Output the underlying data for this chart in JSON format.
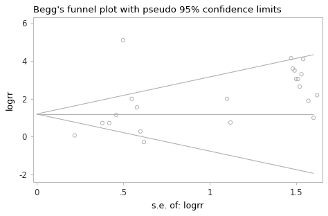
{
  "title": "Begg's funnel plot with pseudo 95% confidence limits",
  "xlabel": "s.e. of: logrr",
  "ylabel": "logrr",
  "xlim": [
    -0.02,
    1.65
  ],
  "ylim": [
    -2.4,
    6.3
  ],
  "xticks": [
    0,
    0.5,
    1.0,
    1.5
  ],
  "xtick_labels": [
    "0",
    ".5",
    "1",
    "1.5"
  ],
  "yticks": [
    -2,
    0,
    2,
    4,
    6
  ],
  "ytick_labels": [
    "-2",
    "0",
    "2",
    "4",
    "6"
  ],
  "estimate": 1.2,
  "scatter_x": [
    0.22,
    0.38,
    0.42,
    0.46,
    0.5,
    0.55,
    0.58,
    0.6,
    0.62,
    1.1,
    1.12,
    1.47,
    1.48,
    1.49,
    1.5,
    1.51,
    1.52,
    1.53,
    1.54,
    1.57,
    1.6,
    1.62
  ],
  "scatter_y": [
    0.07,
    0.72,
    0.72,
    1.15,
    5.1,
    2.0,
    1.55,
    0.28,
    -0.28,
    2.0,
    0.75,
    4.15,
    3.6,
    3.5,
    3.05,
    3.05,
    2.65,
    3.3,
    4.1,
    1.9,
    1.0,
    2.2
  ],
  "line_color": "#b0b0b0",
  "scatter_facecolor": "none",
  "scatter_edgecolor": "#b0b0b0",
  "spine_color": "#bbbbbb",
  "bg_color": "#ffffff",
  "title_fontsize": 9.5,
  "label_fontsize": 9,
  "tick_fontsize": 8.5
}
